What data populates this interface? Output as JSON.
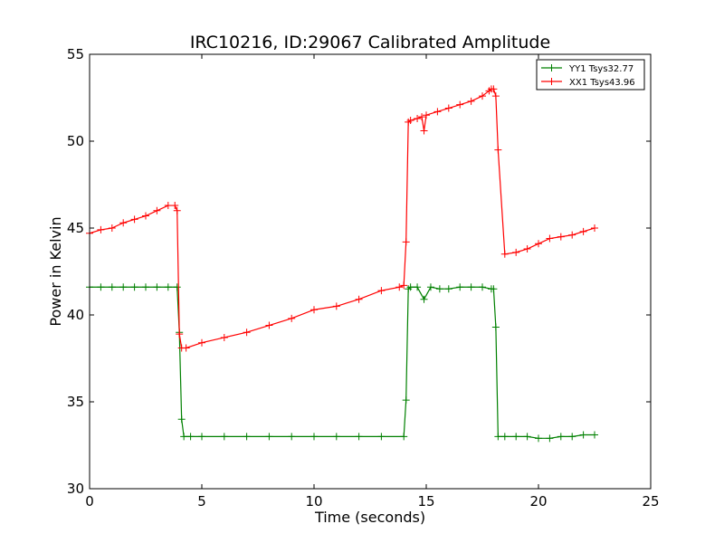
{
  "chart_data": {
    "type": "line",
    "title": "IRC10216, ID:29067 Calibrated Amplitude",
    "xlabel": "Time (seconds)",
    "ylabel": "Power in Kelvin",
    "xlim": [
      0,
      25
    ],
    "ylim": [
      30,
      55
    ],
    "xticks": [
      0,
      5,
      10,
      15,
      20,
      25
    ],
    "yticks": [
      30,
      35,
      40,
      45,
      50,
      55
    ],
    "grid": false,
    "legend_position": "top-right",
    "series": [
      {
        "name": "YY1 Tsys32.77",
        "color": "#008000",
        "x": [
          0,
          0.5,
          1,
          1.5,
          2,
          2.5,
          3,
          3.5,
          3.9,
          4.0,
          4.1,
          4.2,
          4.5,
          5,
          6,
          7,
          8,
          9,
          10,
          11,
          12,
          13,
          14.0,
          14.1,
          14.2,
          14.3,
          14.6,
          14.9,
          15.2,
          15.6,
          16,
          16.5,
          17,
          17.5,
          17.9,
          18.0,
          18.1,
          18.2,
          18.5,
          19,
          19.5,
          20,
          20.5,
          21,
          21.5,
          22,
          22.5
        ],
        "y": [
          41.6,
          41.6,
          41.6,
          41.6,
          41.6,
          41.6,
          41.6,
          41.6,
          41.6,
          39.0,
          34.0,
          33.0,
          33.0,
          33.0,
          33.0,
          33.0,
          33.0,
          33.0,
          33.0,
          33.0,
          33.0,
          33.0,
          33.0,
          35.1,
          41.5,
          41.6,
          41.6,
          40.9,
          41.6,
          41.5,
          41.5,
          41.6,
          41.6,
          41.6,
          41.5,
          41.5,
          39.3,
          33.0,
          33.0,
          33.0,
          33.0,
          32.9,
          32.9,
          33.0,
          33.0,
          33.1,
          33.1
        ]
      },
      {
        "name": "XX1 Tsys43.96",
        "color": "#ff0000",
        "x": [
          0,
          0.5,
          1,
          1.5,
          2,
          2.5,
          3,
          3.5,
          3.8,
          3.9,
          4.0,
          4.1,
          4.3,
          5,
          6,
          7,
          8,
          9,
          10,
          11,
          12,
          13,
          13.8,
          14.0,
          14.1,
          14.2,
          14.3,
          14.6,
          14.8,
          14.9,
          15.0,
          15.5,
          16,
          16.5,
          17,
          17.5,
          17.8,
          17.9,
          18.0,
          18.1,
          18.2,
          18.5,
          19,
          19.5,
          20,
          20.5,
          21,
          21.5,
          22,
          22.5
        ],
        "y": [
          44.7,
          44.9,
          45.0,
          45.3,
          45.5,
          45.7,
          46.0,
          46.3,
          46.3,
          46.0,
          38.9,
          38.1,
          38.1,
          38.4,
          38.7,
          39.0,
          39.4,
          39.8,
          40.3,
          40.5,
          40.9,
          41.4,
          41.6,
          41.7,
          44.2,
          51.1,
          51.2,
          51.3,
          51.4,
          50.6,
          51.5,
          51.7,
          51.9,
          52.1,
          52.3,
          52.6,
          52.9,
          53.0,
          53.0,
          52.6,
          49.5,
          43.5,
          43.6,
          43.8,
          44.1,
          44.4,
          44.5,
          44.6,
          44.8,
          45.0
        ]
      }
    ]
  }
}
